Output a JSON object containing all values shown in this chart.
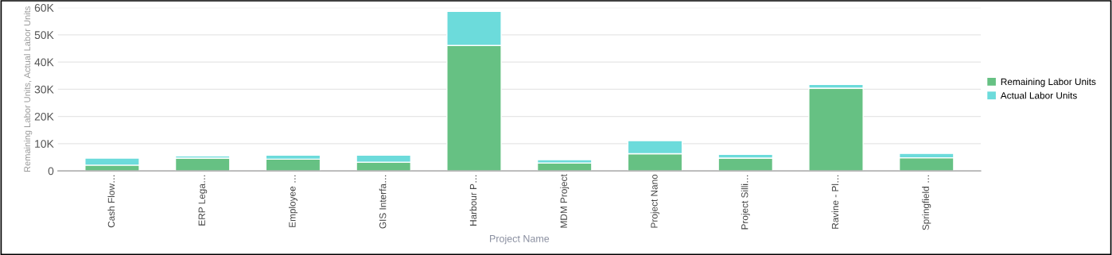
{
  "chart_data": {
    "type": "bar",
    "stacked": true,
    "xlabel": "Project Name",
    "ylabel": "Remaining Labor Units, Actual Labor Units",
    "categories": [
      "Cash Flow…",
      "ERP Lega…",
      "Employee …",
      "GIS Interfa…",
      "Harbour P…",
      "MDM Project",
      "Project Nano",
      "Project Silli…",
      "Ravine - Pl…",
      "Springfield …"
    ],
    "series": [
      {
        "name": "Remaining Labor Units",
        "color": "#66c183",
        "values": [
          2100,
          4700,
          4300,
          3200,
          46100,
          2900,
          6300,
          4700,
          30400,
          4800
        ]
      },
      {
        "name": "Actual Labor Units",
        "color": "#6cdbdb",
        "values": [
          2600,
          800,
          1500,
          2600,
          12500,
          1200,
          4800,
          1400,
          1400,
          1600
        ]
      }
    ],
    "ylim": [
      0,
      60000
    ],
    "yticks": [
      0,
      {
        "value": 10000,
        "label": "10K"
      },
      {
        "value": 20000,
        "label": "20K"
      },
      {
        "value": 30000,
        "label": "30K"
      },
      {
        "value": 40000,
        "label": "40K"
      },
      {
        "value": 50000,
        "label": "50K"
      },
      {
        "value": 60000,
        "label": "60K"
      }
    ],
    "grid": "y",
    "legend": "right"
  }
}
